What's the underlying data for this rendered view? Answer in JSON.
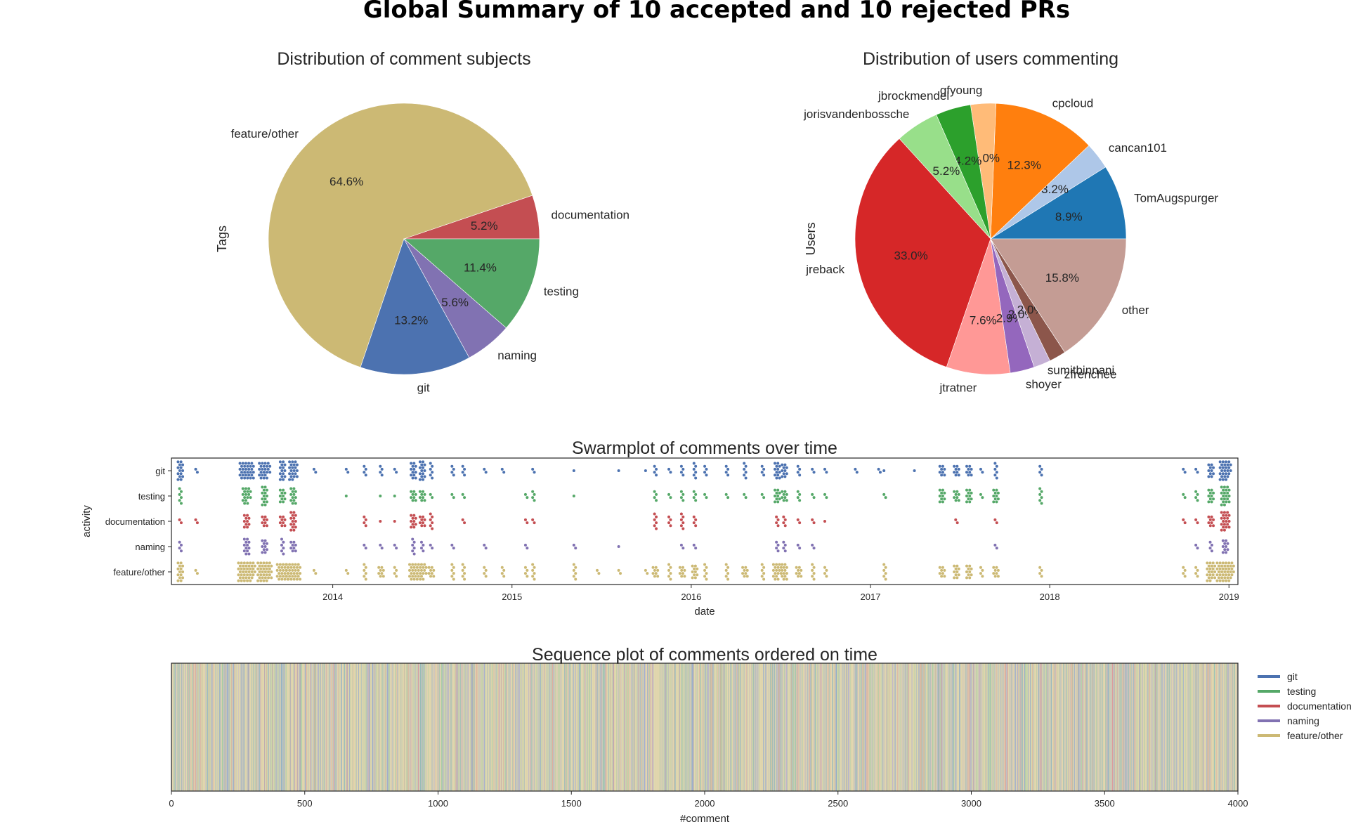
{
  "figure": {
    "title": "Global Summary of 10 accepted and 10 rejected PRs"
  },
  "colors": {
    "git": "#4c72b0",
    "testing": "#55a868",
    "documentation": "#c44e52",
    "naming": "#8172b2",
    "feature/other": "#ccb974"
  },
  "chart_data": [
    {
      "id": "subjects",
      "type": "pie",
      "title": "Distribution of comment subjects",
      "ylabel": "Tags",
      "start_angle_deg": 0,
      "direction": "counterclockwise",
      "slices": [
        {
          "label": "documentation",
          "value": 5.2,
          "pct": "5.2%",
          "color": "#c44e52"
        },
        {
          "label": "feature/other",
          "value": 64.6,
          "pct": "64.6%",
          "color": "#ccb974"
        },
        {
          "label": "git",
          "value": 13.2,
          "pct": "13.2%",
          "color": "#4c72b0"
        },
        {
          "label": "naming",
          "value": 5.6,
          "pct": "5.6%",
          "color": "#8172b2"
        },
        {
          "label": "testing",
          "value": 11.4,
          "pct": "11.4%",
          "color": "#55a868"
        }
      ]
    },
    {
      "id": "users",
      "type": "pie",
      "title": "Distribution of users commenting",
      "ylabel": "Users",
      "start_angle_deg": 0,
      "direction": "counterclockwise",
      "slices": [
        {
          "label": "TomAugspurger",
          "value": 8.9,
          "pct": "8.9%",
          "color": "#1f77b4"
        },
        {
          "label": "cancan101",
          "value": 3.2,
          "pct": "3.2%",
          "color": "#aec7e8"
        },
        {
          "label": "cpcloud",
          "value": 12.3,
          "pct": "12.3%",
          "color": "#ff7f0e"
        },
        {
          "label": "gfyoung",
          "value": 3.0,
          "pct": "3.0%",
          "color": "#ffbb78"
        },
        {
          "label": "jbrockmendel",
          "value": 4.2,
          "pct": "4.2%",
          "color": "#2ca02c"
        },
        {
          "label": "jorisvandenbossche",
          "value": 5.2,
          "pct": "5.2%",
          "color": "#98df8a"
        },
        {
          "label": "jreback",
          "value": 33.0,
          "pct": "33.0%",
          "color": "#d62728"
        },
        {
          "label": "jtratner",
          "value": 7.6,
          "pct": "7.6%",
          "color": "#ff9896"
        },
        {
          "label": "shoyer",
          "value": 2.9,
          "pct": "2.9%",
          "color": "#9467bd"
        },
        {
          "label": "sumitbinnani",
          "value": 2.0,
          "pct": "2.0%",
          "color": "#c5b0d5"
        },
        {
          "label": "zfrenchee",
          "value": 2.0,
          "pct": "2.0%",
          "color": "#8c564b"
        },
        {
          "label": "other",
          "value": 15.8,
          "pct": "15.8%",
          "color": "#c49c94"
        }
      ]
    },
    {
      "id": "swarm",
      "type": "scatter",
      "title": "Swarmplot of comments over time",
      "xlabel": "date",
      "ylabel": "activity",
      "categories": [
        "git",
        "testing",
        "documentation",
        "naming",
        "feature/other"
      ],
      "xlim": [
        2013.1,
        2019.05
      ],
      "xticks": [
        2014,
        2015,
        2016,
        2017,
        2018,
        2019
      ],
      "clusters": [
        {
          "x": 2013.15,
          "counts": [
            14,
            6,
            2,
            4,
            14
          ]
        },
        {
          "x": 2013.24,
          "counts": [
            2,
            0,
            2,
            0,
            2
          ]
        },
        {
          "x": 2013.52,
          "counts": [
            30,
            16,
            10,
            12,
            40
          ]
        },
        {
          "x": 2013.62,
          "counts": [
            22,
            14,
            8,
            10,
            34
          ]
        },
        {
          "x": 2013.72,
          "counts": [
            14,
            10,
            8,
            6,
            24
          ]
        },
        {
          "x": 2013.78,
          "counts": [
            20,
            12,
            14,
            8,
            30
          ]
        },
        {
          "x": 2013.9,
          "counts": [
            2,
            0,
            0,
            0,
            2
          ]
        },
        {
          "x": 2014.08,
          "counts": [
            2,
            1,
            0,
            0,
            2
          ]
        },
        {
          "x": 2014.18,
          "counts": [
            4,
            0,
            4,
            2,
            6
          ]
        },
        {
          "x": 2014.27,
          "counts": [
            4,
            1,
            1,
            2,
            8
          ]
        },
        {
          "x": 2014.35,
          "counts": [
            2,
            1,
            1,
            2,
            4
          ]
        },
        {
          "x": 2014.45,
          "counts": [
            12,
            8,
            10,
            6,
            18
          ]
        },
        {
          "x": 2014.5,
          "counts": [
            14,
            8,
            8,
            4,
            16
          ]
        },
        {
          "x": 2014.55,
          "counts": [
            6,
            2,
            6,
            2,
            8
          ]
        },
        {
          "x": 2014.67,
          "counts": [
            4,
            2,
            0,
            2,
            6
          ]
        },
        {
          "x": 2014.73,
          "counts": [
            4,
            2,
            2,
            0,
            6
          ]
        },
        {
          "x": 2014.85,
          "counts": [
            2,
            0,
            0,
            2,
            4
          ]
        },
        {
          "x": 2014.95,
          "counts": [
            2,
            0,
            0,
            0,
            4
          ]
        },
        {
          "x": 2015.08,
          "counts": [
            0,
            2,
            2,
            2,
            4
          ]
        },
        {
          "x": 2015.12,
          "counts": [
            2,
            4,
            2,
            0,
            6
          ]
        },
        {
          "x": 2015.35,
          "counts": [
            1,
            1,
            0,
            2,
            6
          ]
        },
        {
          "x": 2015.48,
          "counts": [
            0,
            0,
            0,
            0,
            2
          ]
        },
        {
          "x": 2015.6,
          "counts": [
            1,
            0,
            0,
            1,
            2
          ]
        },
        {
          "x": 2015.75,
          "counts": [
            1,
            0,
            0,
            0,
            2
          ]
        },
        {
          "x": 2015.8,
          "counts": [
            4,
            4,
            6,
            0,
            8
          ]
        },
        {
          "x": 2015.88,
          "counts": [
            2,
            2,
            4,
            0,
            6
          ]
        },
        {
          "x": 2015.95,
          "counts": [
            4,
            4,
            6,
            2,
            8
          ]
        },
        {
          "x": 2016.02,
          "counts": [
            6,
            4,
            4,
            2,
            10
          ]
        },
        {
          "x": 2016.08,
          "counts": [
            4,
            2,
            0,
            0,
            6
          ]
        },
        {
          "x": 2016.2,
          "counts": [
            4,
            2,
            0,
            0,
            6
          ]
        },
        {
          "x": 2016.3,
          "counts": [
            6,
            2,
            0,
            0,
            8
          ]
        },
        {
          "x": 2016.4,
          "counts": [
            4,
            2,
            0,
            0,
            6
          ]
        },
        {
          "x": 2016.48,
          "counts": [
            12,
            10,
            4,
            4,
            16
          ]
        },
        {
          "x": 2016.52,
          "counts": [
            10,
            8,
            4,
            4,
            12
          ]
        },
        {
          "x": 2016.6,
          "counts": [
            4,
            4,
            2,
            2,
            8
          ]
        },
        {
          "x": 2016.68,
          "counts": [
            2,
            2,
            2,
            2,
            6
          ]
        },
        {
          "x": 2016.75,
          "counts": [
            2,
            2,
            1,
            0,
            4
          ]
        },
        {
          "x": 2016.92,
          "counts": [
            2,
            0,
            0,
            0,
            0
          ]
        },
        {
          "x": 2017.05,
          "counts": [
            2,
            0,
            0,
            0,
            0
          ]
        },
        {
          "x": 2017.08,
          "counts": [
            1,
            2,
            0,
            0,
            6
          ]
        },
        {
          "x": 2017.25,
          "counts": [
            1,
            0,
            0,
            0,
            0
          ]
        },
        {
          "x": 2017.4,
          "counts": [
            8,
            10,
            0,
            0,
            8
          ]
        },
        {
          "x": 2017.48,
          "counts": [
            8,
            8,
            2,
            0,
            10
          ]
        },
        {
          "x": 2017.55,
          "counts": [
            8,
            10,
            0,
            0,
            10
          ]
        },
        {
          "x": 2017.62,
          "counts": [
            2,
            2,
            0,
            0,
            4
          ]
        },
        {
          "x": 2017.7,
          "counts": [
            6,
            10,
            2,
            2,
            8
          ]
        },
        {
          "x": 2017.95,
          "counts": [
            4,
            6,
            0,
            0,
            4
          ]
        },
        {
          "x": 2018.75,
          "counts": [
            2,
            2,
            2,
            0,
            4
          ]
        },
        {
          "x": 2018.82,
          "counts": [
            2,
            4,
            2,
            2,
            4
          ]
        },
        {
          "x": 2018.9,
          "counts": [
            10,
            10,
            8,
            4,
            20
          ]
        },
        {
          "x": 2018.98,
          "counts": [
            26,
            20,
            20,
            10,
            40
          ]
        }
      ]
    },
    {
      "id": "sequence",
      "type": "heatmap",
      "title": "Sequence plot of comments ordered on time",
      "xlabel": "#comment",
      "xlim": [
        0,
        4000
      ],
      "xticks": [
        0,
        500,
        1000,
        1500,
        2000,
        2500,
        3000,
        3500,
        4000
      ],
      "n_comments": 4000,
      "category_shares": {
        "git": 13.2,
        "testing": 11.4,
        "documentation": 5.2,
        "naming": 5.6,
        "feature/other": 64.6
      },
      "legend": {
        "position": "right",
        "entries": [
          "git",
          "testing",
          "documentation",
          "naming",
          "feature/other"
        ]
      }
    }
  ]
}
